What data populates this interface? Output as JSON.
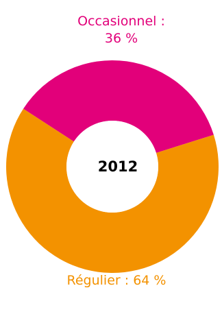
{
  "chart_data": {
    "type": "pie",
    "center_label": "2012",
    "slices": [
      {
        "name": "Occasionnel",
        "value": 36,
        "label_line1": "Occasionnel :",
        "label_line2": "36 %",
        "color": "#E2007A"
      },
      {
        "name": "Régulier",
        "value": 64,
        "label": "Régulier : 64 %",
        "color": "#F39200"
      }
    ],
    "donut": true,
    "background": "#FFFFFF"
  }
}
